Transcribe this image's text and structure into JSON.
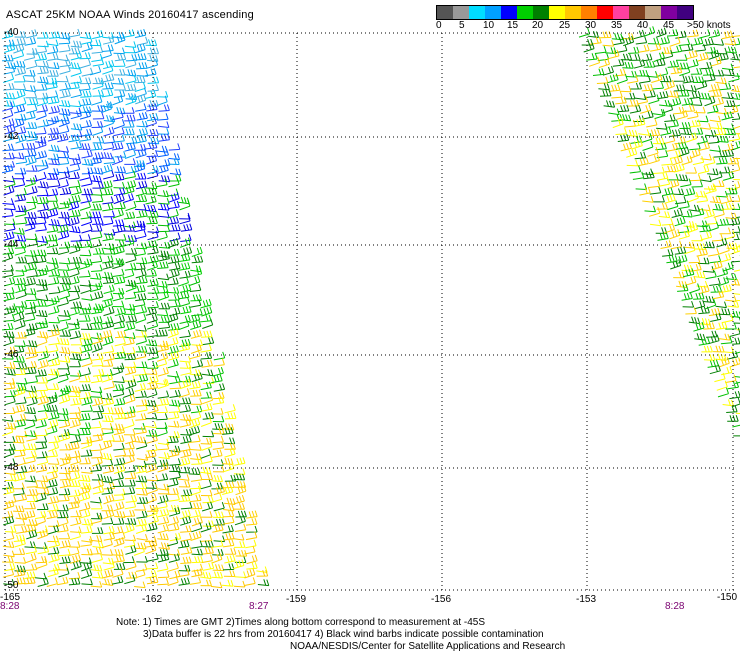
{
  "title": "ASCAT 25KM NOAA Winds 20160417 ascending",
  "legend": {
    "colors": [
      "#555555",
      "#999999",
      "#00ddff",
      "#00a0ff",
      "#0000ff",
      "#00d000",
      "#008000",
      "#ffff00",
      "#ffc800",
      "#ff8000",
      "#ff0000",
      "#ff40a0",
      "#804020",
      "#c0a080",
      "#8000a0",
      "#400080"
    ],
    "ticks": [
      "0",
      "5",
      "10",
      "15",
      "20",
      "25",
      "30",
      "35",
      "40",
      "45",
      ">50 knots"
    ]
  },
  "map": {
    "latitude_labels": [
      "-40",
      "-42",
      "-44",
      "-46",
      "-48",
      "-50"
    ],
    "longitude_labels": [
      "-165",
      "-162",
      "-159",
      "-156",
      "-153",
      "-150"
    ],
    "time_labels": [
      "8:28",
      "8:27",
      "8:28"
    ]
  },
  "notes": {
    "line1": "Note: 1) Times are GMT 2)Times along bottom correspond to measurement at -45S",
    "line2": "3)Data buffer is 22 hrs from 20160417 4) Black wind barbs indicate possible contamination",
    "line3": "NOAA/NESDIS/Center for Satellite Applications and Research"
  }
}
